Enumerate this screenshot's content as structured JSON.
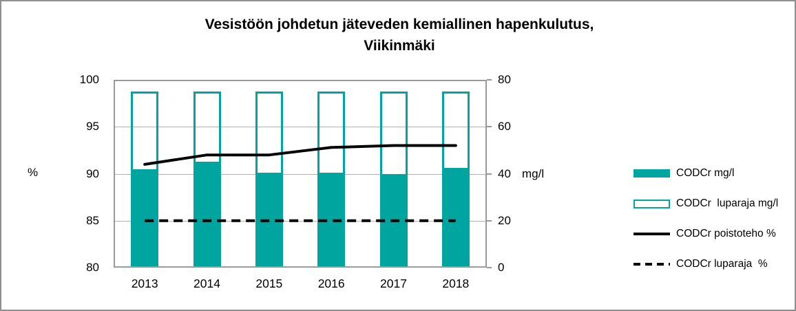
{
  "chart_data": {
    "type": "bar",
    "subtype": "combo-bar-line-dual-axis",
    "title_line1": "Vesistöön johdetun jäteveden kemiallinen hapenkulutus,",
    "title_line2": "Viikinmäki",
    "categories": [
      "2013",
      "2014",
      "2015",
      "2016",
      "2017",
      "2018"
    ],
    "series": [
      {
        "name": "CODCr mg/l",
        "type": "bar",
        "axis": "right",
        "swatch": "bar-filled",
        "values": [
          42,
          45,
          40.5,
          40.5,
          40,
          42.5
        ]
      },
      {
        "name": "CODCr  luparaja mg/l",
        "type": "bar-outline",
        "axis": "right",
        "swatch": "bar-outline",
        "values": [
          75,
          75,
          75,
          75,
          75,
          75
        ]
      },
      {
        "name": "CODCr poistoteho %",
        "type": "line",
        "axis": "left",
        "swatch": "line-solid",
        "values": [
          91,
          92,
          92,
          92.8,
          93,
          93
        ]
      },
      {
        "name": "CODCr luparaja  %",
        "type": "line-dashed",
        "axis": "left",
        "swatch": "line-dashed",
        "values": [
          85,
          85,
          85,
          85,
          85,
          85
        ]
      }
    ],
    "left_axis": {
      "label": "%",
      "min": 80,
      "max": 100,
      "ticks": [
        100,
        95,
        90,
        85,
        80
      ]
    },
    "right_axis": {
      "label": "mg/l",
      "min": 0,
      "max": 80,
      "ticks": [
        80,
        60,
        40,
        20,
        0
      ]
    },
    "grid": true,
    "legend_position": "right",
    "colors": {
      "teal": "#00A5A0",
      "grid": "#AFAFAF",
      "axis_box": "#9A9A9A",
      "line_black": "#000000",
      "outer_border": "#8F8F8F"
    }
  }
}
